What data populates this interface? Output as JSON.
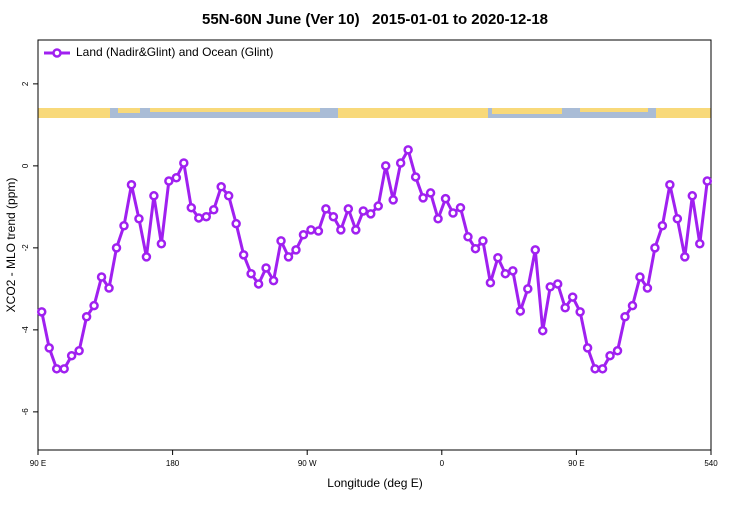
{
  "chart_data": {
    "type": "line",
    "title": "55N-60N June (Ver 10)   2015-01-01 to 2020-12-18",
    "x_label": "Longitude (deg E)",
    "y_label": "XCO2 - MLO trend (ppm)",
    "x": [
      92.5,
      97.5,
      102.5,
      107.5,
      112.5,
      117.5,
      122.5,
      127.5,
      132.5,
      137.5,
      142.5,
      147.5,
      152.5,
      157.5,
      162.5,
      167.5,
      172.5,
      177.5,
      182.5,
      187.5,
      192.5,
      197.5,
      202.5,
      207.5,
      212.5,
      217.5,
      222.5,
      227.5,
      232.5,
      237.5,
      242.5,
      247.5,
      252.5,
      257.5,
      262.5,
      267.5,
      272.5,
      277.5,
      282.5,
      287.5,
      292.5,
      297.5,
      302.5,
      307.5,
      312.5,
      317.5,
      322.5,
      327.5,
      332.5,
      337.5,
      342.5,
      347.5,
      352.5,
      357.5,
      362.5,
      367.5,
      372.5,
      377.5,
      382.5,
      387.5,
      392.5,
      397.5,
      402.5,
      407.5,
      412.5,
      417.5,
      422.5,
      427.5,
      432.5,
      437.5,
      442.5,
      447.5,
      452.5,
      457.5,
      462.5,
      467.5,
      472.5,
      477.5,
      482.5,
      487.5,
      492.5,
      497.5,
      502.5,
      507.5,
      512.5,
      517.5,
      522.5,
      527.5,
      532.5,
      537.5
    ],
    "series": [
      {
        "name": "Land (Nadir&Glint) and Ocean (Glint)",
        "color": "#a020f0",
        "values": [
          -3.56,
          -4.44,
          -4.95,
          -4.95,
          -4.63,
          -4.51,
          -3.68,
          -3.41,
          -2.71,
          -2.98,
          -2.0,
          -1.46,
          -0.46,
          -1.29,
          -2.22,
          -0.73,
          -1.9,
          -0.37,
          -0.29,
          0.07,
          -1.02,
          -1.27,
          -1.24,
          -1.07,
          -0.51,
          -0.73,
          -1.41,
          -2.17,
          -2.63,
          -2.88,
          -2.49,
          -2.8,
          -1.83,
          -2.22,
          -2.05,
          -1.68,
          -1.56,
          -1.59,
          -1.05,
          -1.24,
          -1.56,
          -1.05,
          -1.56,
          -1.1,
          -1.17,
          -0.98,
          0.0,
          -0.83,
          0.07,
          0.39,
          -0.27,
          -0.78,
          -0.66,
          -1.29,
          -0.8,
          -1.15,
          -1.02,
          -1.73,
          -2.02,
          -1.83,
          -2.85,
          -2.24,
          -2.63,
          -2.56,
          -3.54,
          -3.0,
          -2.05,
          -4.02,
          -2.95,
          -2.88,
          -3.46,
          -3.2,
          -3.56,
          -4.44,
          -4.95,
          -4.95,
          -4.63,
          -4.51,
          -3.68,
          -3.41,
          -2.71,
          -2.98,
          -2.0,
          -1.46,
          -0.46,
          -1.29,
          -2.22,
          -0.73,
          -1.9,
          -0.37
        ]
      }
    ],
    "xlim": [
      90,
      540
    ],
    "xticks": [
      {
        "value": 90,
        "label": "90 E"
      },
      180,
      {
        "value": 270,
        "label": "90 W"
      },
      {
        "value": 360,
        "label": "0"
      },
      {
        "value": 450,
        "label": "90 E"
      },
      540
    ],
    "ylim": [
      -6.93,
      3.07
    ],
    "yticks": [
      -6,
      -4,
      -2,
      0,
      2
    ],
    "legend": "top-left"
  }
}
